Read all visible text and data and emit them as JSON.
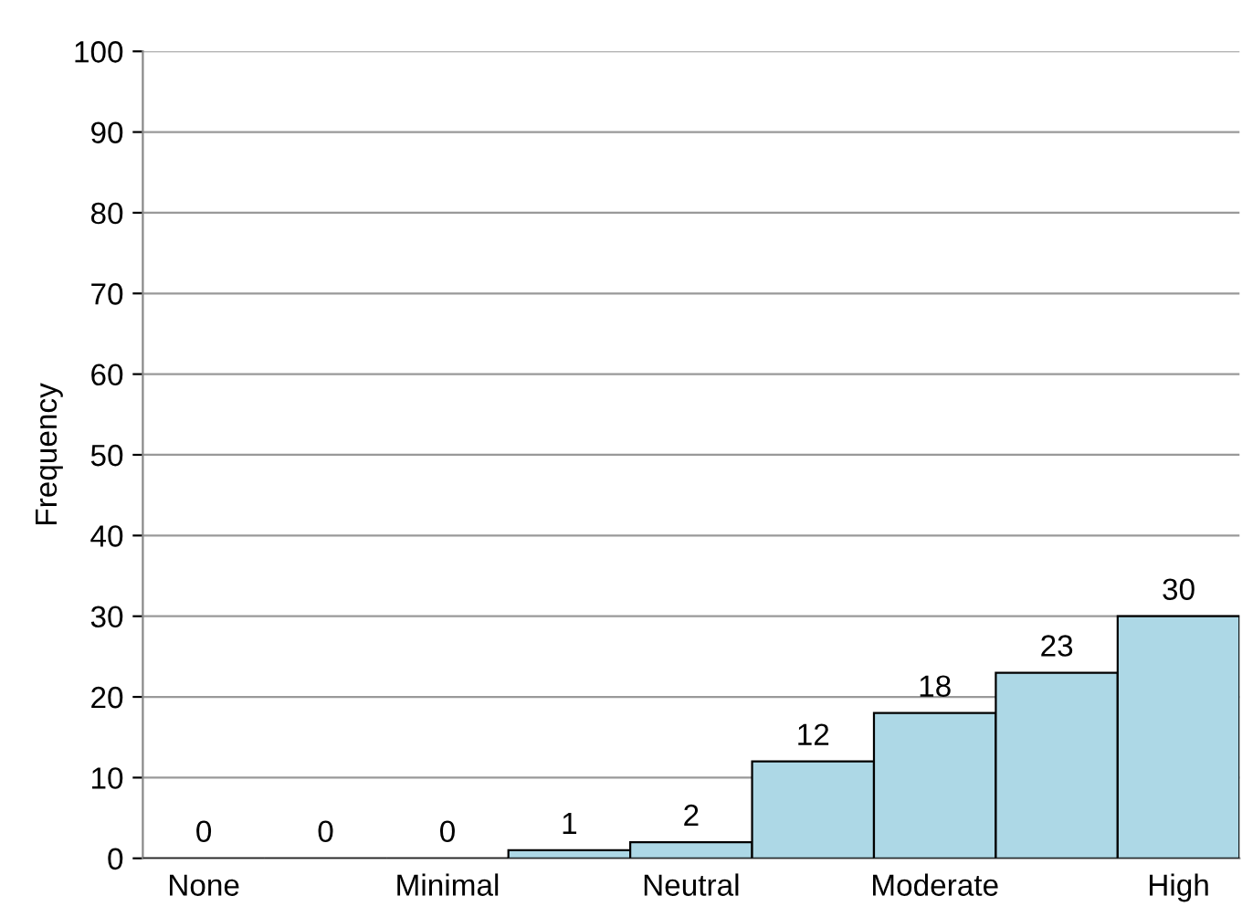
{
  "chart_data": {
    "type": "bar",
    "ylabel": "Frequency",
    "categories": [
      "None",
      null,
      "Minimal",
      null,
      "Neutral",
      null,
      "Moderate",
      null,
      "High"
    ],
    "values": [
      0,
      0,
      0,
      1,
      2,
      12,
      18,
      23,
      30
    ],
    "color": "#add8e6",
    "ylim": [
      0,
      100
    ],
    "yticks": [
      0,
      10,
      20,
      30,
      40,
      50,
      60,
      70,
      80,
      90,
      100
    ],
    "grid": "y",
    "data_labels": true
  }
}
